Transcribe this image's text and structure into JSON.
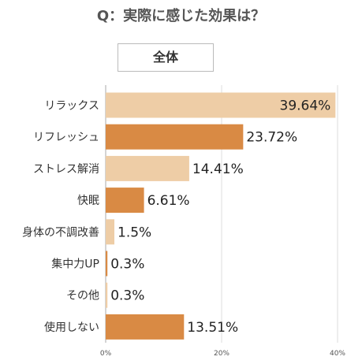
{
  "header": {
    "question": "Q：実際に感じた効果は？",
    "subtitle": "全体"
  },
  "colors": {
    "light_bar": "#eecda6",
    "dark_bar": "#d98a44",
    "grid": "#dddddd",
    "axis": "#aaaaaa"
  },
  "chart_data": {
    "type": "bar",
    "orientation": "horizontal",
    "title": "Q：実際に感じた効果は？",
    "subtitle": "全体",
    "categories": [
      "リラックス",
      "リフレッシュ",
      "ストレス解消",
      "快眠",
      "身体の不調改善",
      "集中力UP",
      "その他",
      "使用しない"
    ],
    "values": [
      39.64,
      23.72,
      14.41,
      6.61,
      1.5,
      0.3,
      0.3,
      13.51
    ],
    "value_labels": [
      "39.64%",
      "23.72%",
      "14.41%",
      "6.61%",
      "1.5%",
      "0.3%",
      "0.3%",
      "13.51%"
    ],
    "bar_shade": [
      "light",
      "dark",
      "light",
      "dark",
      "light",
      "dark",
      "light",
      "dark"
    ],
    "xlim": [
      0,
      40
    ],
    "xticks": [
      0,
      20,
      40
    ],
    "xtick_labels": [
      "0%",
      "20%",
      "40%"
    ],
    "grid": true
  }
}
